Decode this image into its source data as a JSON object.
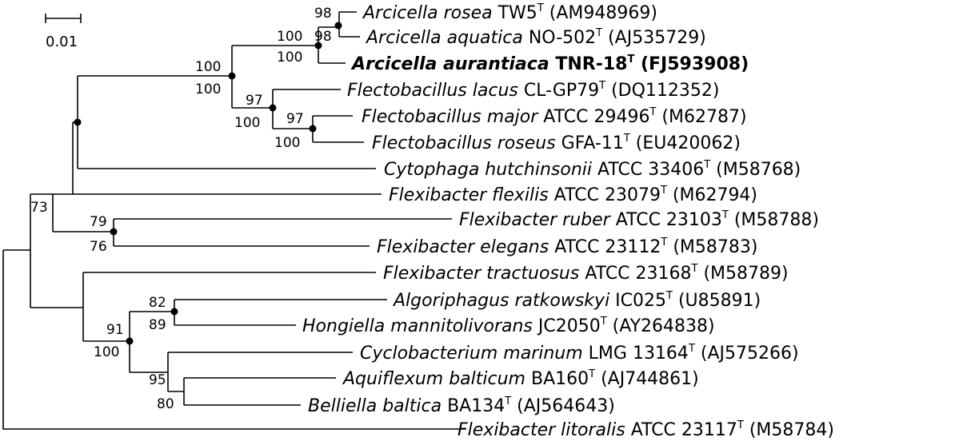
{
  "scale_bar": {
    "label": "0.01"
  },
  "taxa": [
    {
      "genus": "Arcicella rosea",
      "strain": " TW5",
      "type": "T",
      "acc": " (AM948969)",
      "bold": false
    },
    {
      "genus": "Arcicella aquatica",
      "strain": " NO-502",
      "type": "T",
      "acc": " (AJ535729)",
      "bold": false
    },
    {
      "genus": "Arcicella aurantiaca",
      "strain": " TNR-18",
      "type": "T",
      "acc": " (FJ593908)",
      "bold": true
    },
    {
      "genus": "Flectobacillus lacus",
      "strain": " CL-GP79",
      "type": "T",
      "acc": " (DQ112352)",
      "bold": false
    },
    {
      "genus": "Flectobacillus major",
      "strain": " ATCC 29496",
      "type": "T",
      "acc": " (M62787)",
      "bold": false
    },
    {
      "genus": "Flectobacillus roseus",
      "strain": " GFA-11",
      "type": "T",
      "acc": " (EU420062)",
      "bold": false
    },
    {
      "genus": "Cytophaga hutchinsonii",
      "strain": " ATCC 33406",
      "type": "T",
      "acc": " (M58768)",
      "bold": false
    },
    {
      "genus": "Flexibacter flexilis",
      "strain": " ATCC 23079",
      "type": "T",
      "acc": " (M62794)",
      "bold": false
    },
    {
      "genus": "Flexibacter ruber",
      "strain": " ATCC 23103",
      "type": "T",
      "acc": " (M58788)",
      "bold": false
    },
    {
      "genus": "Flexibacter elegans",
      "strain": " ATCC 23112",
      "type": "T",
      "acc": " (M58783)",
      "bold": false
    },
    {
      "genus": "Flexibacter tractuosus",
      "strain": " ATCC 23168",
      "type": "T",
      "acc": " (M58789)",
      "bold": false
    },
    {
      "genus": "Algoriphagus ratkowskyi",
      "strain": " IC025",
      "type": "T",
      "acc": " (U85891)",
      "bold": false
    },
    {
      "genus": "Hongiella mannitolivorans",
      "strain": " JC2050",
      "type": "T",
      "acc": " (AY264838)",
      "bold": false
    },
    {
      "genus": "Cyclobacterium marinum",
      "strain": " LMG 13164",
      "type": "T",
      "acc": " (AJ575266)",
      "bold": false
    },
    {
      "genus": "Aquiflexum balticum",
      "strain": " BA160",
      "type": "T",
      "acc": " (AJ744861)",
      "bold": false
    },
    {
      "genus": "Belliella baltica",
      "strain": " BA134",
      "type": "T",
      "acc": " (AJ564643)",
      "bold": false
    },
    {
      "genus": "Flexibacter litoralis",
      "strain": " ATCC 23117",
      "type": "T",
      "acc": " (M58784)",
      "bold": false
    }
  ],
  "bootstrap": [
    "98",
    "100",
    "98",
    "100",
    "100",
    "100",
    "97",
    "100",
    "97",
    "100",
    "73",
    "79",
    "76",
    "82",
    "89",
    "91",
    "100",
    "95",
    "80"
  ]
}
